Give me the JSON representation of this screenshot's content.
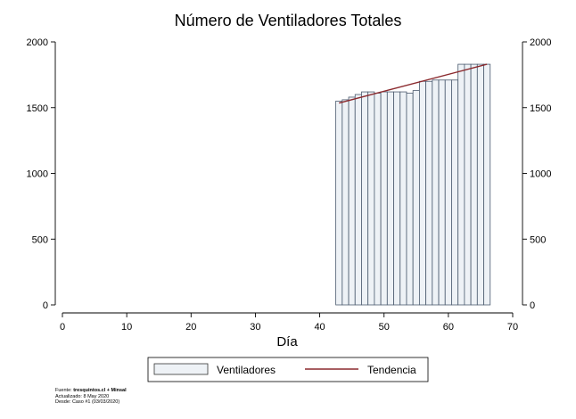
{
  "chart_data": {
    "type": "bar",
    "title": "Número de Ventiladores Totales",
    "xlabel": "Día",
    "ylabel": "",
    "xlim": [
      0,
      70
    ],
    "ylim": [
      0,
      2000
    ],
    "xticks": [
      0,
      10,
      20,
      30,
      40,
      50,
      60,
      70
    ],
    "yticks": [
      0,
      500,
      1000,
      1500,
      2000
    ],
    "x": [
      43,
      44,
      45,
      46,
      47,
      48,
      49,
      50,
      51,
      52,
      53,
      54,
      55,
      56,
      57,
      58,
      59,
      60,
      61,
      62,
      63,
      64,
      65,
      66
    ],
    "series": [
      {
        "name": "Ventiladores",
        "type": "bar",
        "color": "#eef2f6",
        "values": [
          1550,
          1560,
          1580,
          1600,
          1620,
          1620,
          1610,
          1620,
          1620,
          1620,
          1620,
          1610,
          1630,
          1700,
          1700,
          1710,
          1710,
          1710,
          1710,
          1830,
          1830,
          1830,
          1830,
          1830
        ]
      },
      {
        "name": "Tendencia",
        "type": "line",
        "color": "#8b2a2e",
        "x": [
          43,
          66
        ],
        "values": [
          1535,
          1830
        ]
      }
    ],
    "legend": "bottom-center",
    "grid": false
  },
  "source": {
    "label": "Fuente:",
    "name": "tresquintos.cl + Minsal",
    "updated": "Actualizado: 8 May 2020",
    "since": "Desde: Caso #1  (03/03/2020)"
  }
}
